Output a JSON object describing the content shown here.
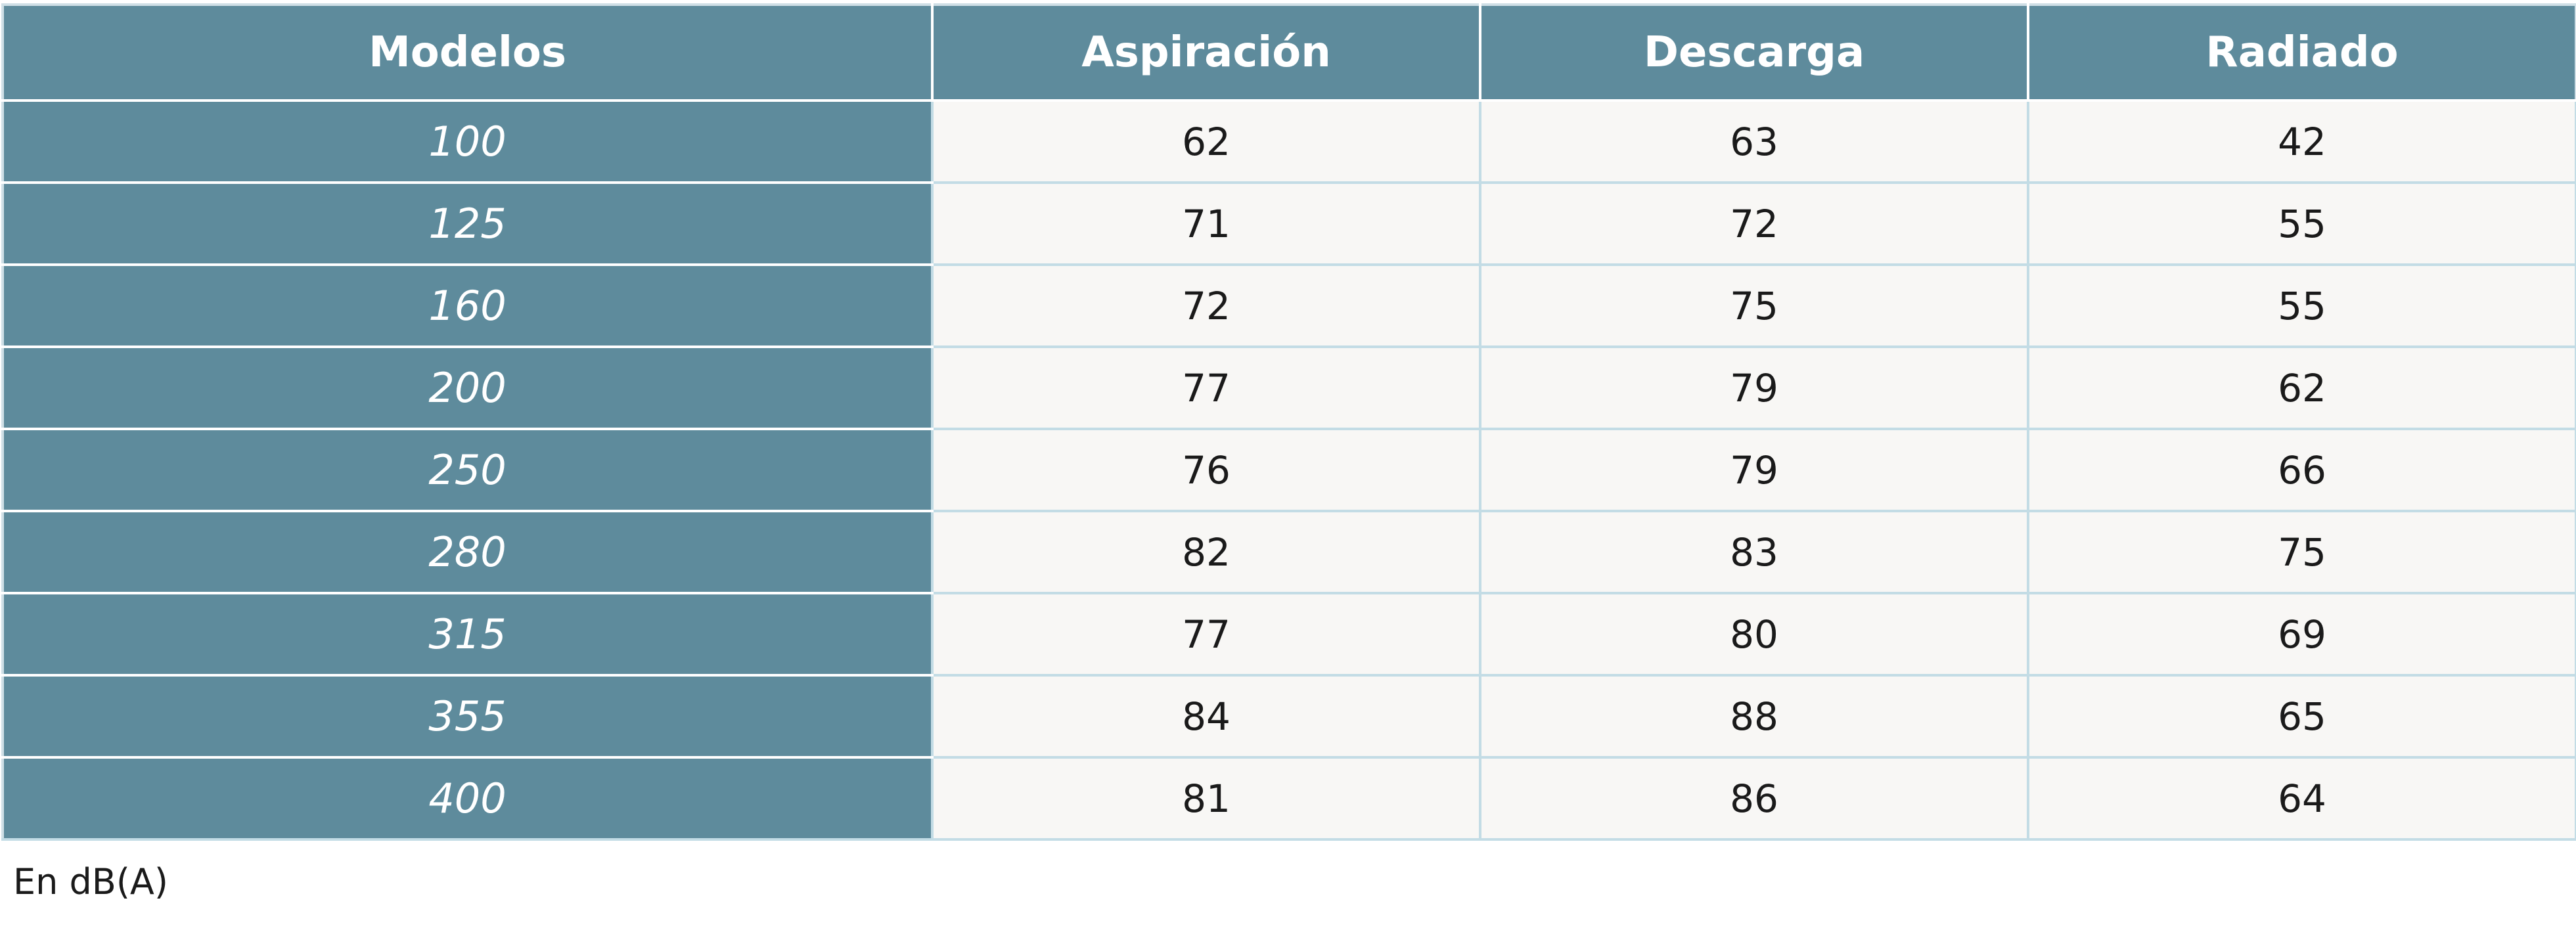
{
  "table": {
    "headers": [
      "Modelos",
      "Aspiración",
      "Descarga",
      "Radiado"
    ],
    "rows": [
      {
        "model": "100",
        "aspiracion": "62",
        "descarga": "63",
        "radiado": "42"
      },
      {
        "model": "125",
        "aspiracion": "71",
        "descarga": "72",
        "radiado": "55"
      },
      {
        "model": "160",
        "aspiracion": "72",
        "descarga": "75",
        "radiado": "55"
      },
      {
        "model": "200",
        "aspiracion": "77",
        "descarga": "79",
        "radiado": "62"
      },
      {
        "model": "250",
        "aspiracion": "76",
        "descarga": "79",
        "radiado": "66"
      },
      {
        "model": "280",
        "aspiracion": "82",
        "descarga": "83",
        "radiado": "75"
      },
      {
        "model": "315",
        "aspiracion": "77",
        "descarga": "80",
        "radiado": "69"
      },
      {
        "model": "355",
        "aspiracion": "84",
        "descarga": "88",
        "radiado": "65"
      },
      {
        "model": "400",
        "aspiracion": "81",
        "descarga": "86",
        "radiado": "64"
      }
    ]
  },
  "footnote": "En dB(A)",
  "colors": {
    "header_bg": "#5e8b9c",
    "header_text": "#ffffff",
    "cell_bg": "#f8f7f5",
    "grid_line": "#c3dce5"
  }
}
